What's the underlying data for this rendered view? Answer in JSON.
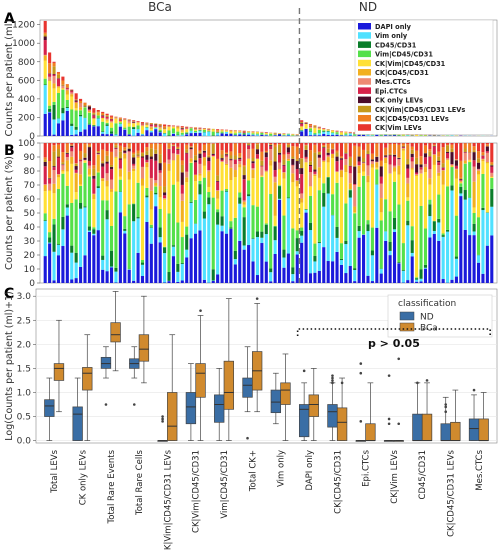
{
  "group_labels": [
    "BCa",
    "ND"
  ],
  "chart_data": [
    {
      "panel": "A",
      "type": "bar",
      "stacked": true,
      "ylabel": "Counts per patient (ml)",
      "ylim": [
        0,
        1250
      ],
      "yticks": [
        0,
        200,
        400,
        600,
        800,
        1000,
        1200
      ],
      "group_split_index": 58,
      "bar_totals": [
        1240,
        900,
        800,
        690,
        640,
        560,
        500,
        460,
        400,
        360,
        330,
        300,
        280,
        260,
        240,
        220,
        210,
        200,
        190,
        180,
        170,
        160,
        150,
        145,
        140,
        135,
        130,
        125,
        120,
        115,
        110,
        106,
        102,
        98,
        94,
        90,
        86,
        82,
        78,
        75,
        72,
        69,
        66,
        63,
        60,
        57,
        54,
        51,
        48,
        45,
        42,
        39,
        36,
        33,
        30,
        27,
        24,
        21,
        170,
        150,
        130,
        115,
        100,
        85,
        75,
        65,
        58,
        52,
        48,
        45,
        42,
        40,
        38,
        36,
        34,
        32,
        30,
        28,
        26,
        24,
        22,
        20,
        19,
        18,
        17,
        16,
        15,
        14,
        13,
        12,
        11,
        10,
        9,
        8,
        7,
        6,
        5,
        5,
        4,
        4,
        3,
        3
      ],
      "legend": [
        {
          "label": "DAPI only",
          "color": "#1a1adb"
        },
        {
          "label": "Vim only",
          "color": "#4fe1ff"
        },
        {
          "label": "CD45/CD31",
          "color": "#0a7d2a"
        },
        {
          "label": "Vim|CD45/CD31",
          "color": "#55e04a"
        },
        {
          "label": "CK|Vim|CD45/CD31",
          "color": "#ffe035"
        },
        {
          "label": "CK|CD45/CD31",
          "color": "#f2b01f"
        },
        {
          "label": "Mes.CTCs",
          "color": "#ee8a73"
        },
        {
          "label": "Epi.CTCs",
          "color": "#d6224a"
        },
        {
          "label": "CK only LEVs",
          "color": "#4a0c2a"
        },
        {
          "label": "CK|Vim|CD45/CD31 LEVs",
          "color": "#c59a1c"
        },
        {
          "label": "CK|CD45/CD31 LEVs",
          "color": "#f08020"
        },
        {
          "label": "CK|Vim LEVs",
          "color": "#e8342e"
        }
      ]
    },
    {
      "panel": "B",
      "type": "bar",
      "stacked": true,
      "normalized": true,
      "ylabel": "Counts per patient (%)",
      "ylim": [
        0,
        100
      ],
      "yticks": [
        0,
        10,
        20,
        30,
        40,
        50,
        60,
        70,
        80,
        90,
        100
      ]
    },
    {
      "panel": "C",
      "type": "box",
      "title": "",
      "ylabel": "Log(Counts per patient (ml)+1)",
      "ylim": [
        -0.05,
        3.15
      ],
      "yticks": [
        0.0,
        0.5,
        1.0,
        1.5,
        2.0,
        2.5,
        3.0
      ],
      "legend_title": "classification",
      "annotation": "p > 0.05",
      "categories": [
        "Total LEVs",
        "CK only LEVs",
        "Total Rare Events",
        "Total Rare Cells",
        "CK|Vim|CD45/CD31 LEVs",
        "CK|Vim|CD45/CD31",
        "Vim|CD45/CD31",
        "Total CK+",
        "Vim only",
        "DAPI only",
        "CK|CD45/CD31",
        "Epi.CTCs",
        "CK|Vim LEVs",
        "CD45/CD31",
        "CK|CD45/CD31 LEVs",
        "Mes.CTCs"
      ],
      "series": [
        {
          "name": "ND",
          "color": "#3a6ea5",
          "boxes": [
            [
              0.0,
              0.5,
              0.72,
              0.85,
              1.3
            ],
            [
              0.0,
              0.0,
              0.55,
              0.7,
              1.3
            ],
            [
              1.3,
              1.5,
              1.6,
              1.73,
              1.95
            ],
            [
              1.3,
              1.5,
              1.6,
              1.7,
              1.95
            ],
            [
              0.0,
              0.0,
              0.0,
              0.0,
              0.0
            ],
            [
              0.0,
              0.35,
              0.7,
              1.0,
              1.6
            ],
            [
              0.0,
              0.38,
              0.75,
              0.95,
              1.5
            ],
            [
              0.6,
              0.9,
              1.15,
              1.3,
              1.95
            ],
            [
              0.35,
              0.58,
              0.8,
              1.05,
              1.4
            ],
            [
              0.0,
              0.08,
              0.65,
              0.75,
              1.2
            ],
            [
              0.0,
              0.28,
              0.6,
              0.75,
              1.2
            ],
            [
              0.0,
              0.0,
              0.0,
              0.0,
              0.0
            ],
            [
              0.0,
              0.0,
              0.0,
              0.0,
              0.0
            ],
            [
              0.0,
              0.0,
              0.0,
              0.55,
              1.2
            ],
            [
              0.0,
              0.0,
              0.0,
              0.35,
              0.9
            ],
            [
              0.0,
              0.0,
              0.25,
              0.45,
              0.95
            ]
          ],
          "outliers": [
            [],
            [],
            [
              0.75
            ],
            [
              0.75
            ],
            [
              0.4,
              0.45,
              0.5
            ],
            [],
            [],
            [
              0.05
            ],
            [],
            [
              1.45
            ],
            [
              1.2,
              1.25,
              1.3,
              1.35
            ],
            [
              0.4,
              1.4,
              1.6
            ],
            [
              0.35,
              0.45,
              1.35
            ],
            [
              1.2
            ],
            [
              0.6,
              0.7,
              0.75
            ],
            [
              1.05
            ]
          ]
        },
        {
          "name": "BCa",
          "color": "#d08a2e",
          "boxes": [
            [
              0.6,
              1.25,
              1.5,
              1.6,
              2.5
            ],
            [
              0.0,
              1.05,
              1.4,
              1.52,
              2.2
            ],
            [
              1.45,
              2.05,
              2.2,
              2.45,
              3.1
            ],
            [
              1.2,
              1.65,
              1.9,
              2.2,
              3.0
            ],
            [
              0.0,
              0.0,
              0.3,
              1.0,
              2.2
            ],
            [
              0.0,
              0.9,
              1.4,
              1.6,
              2.6
            ],
            [
              0.0,
              0.65,
              1.0,
              1.65,
              2.95
            ],
            [
              0.6,
              1.05,
              1.45,
              1.85,
              2.85
            ],
            [
              0.0,
              0.75,
              1.05,
              1.2,
              1.8
            ],
            [
              0.0,
              0.5,
              0.75,
              0.95,
              1.5
            ],
            [
              0.0,
              0.0,
              0.38,
              0.68,
              1.3
            ],
            [
              0.0,
              0.0,
              0.0,
              0.35,
              1.2
            ],
            [
              0.0,
              0.0,
              0.0,
              0.0,
              0.0
            ],
            [
              0.0,
              0.0,
              0.0,
              0.55,
              1.2
            ],
            [
              0.0,
              0.0,
              0.0,
              0.38,
              1.05
            ],
            [
              0.0,
              0.0,
              0.0,
              0.45,
              1.0
            ]
          ],
          "outliers": [
            [],
            [],
            [],
            [],
            [],
            [
              2.7
            ],
            [],
            [
              2.95
            ],
            [],
            [],
            [
              1.2
            ],
            [],
            [
              0.35,
              1.7
            ],
            [
              1.25
            ],
            [],
            []
          ]
        }
      ]
    }
  ]
}
